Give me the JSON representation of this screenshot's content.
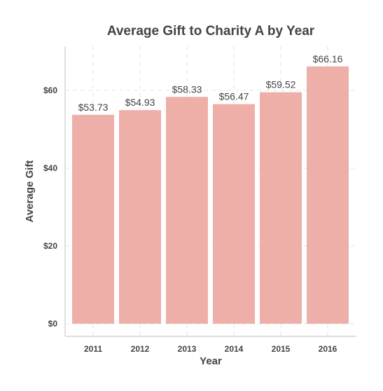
{
  "chart_data": {
    "type": "bar",
    "title": "Average Gift to Charity A by Year",
    "xlabel": "Year",
    "ylabel": "Average Gift",
    "categories": [
      "2011",
      "2012",
      "2013",
      "2014",
      "2015",
      "2016"
    ],
    "values": [
      53.73,
      54.93,
      58.33,
      56.47,
      59.52,
      66.16
    ],
    "data_labels": [
      "$53.73",
      "$54.93",
      "$58.33",
      "$56.47",
      "$59.52",
      "$66.16"
    ],
    "ylim": [
      0,
      72
    ],
    "yticks": [
      0,
      20,
      40,
      60
    ],
    "ytick_labels": [
      "$0",
      "$20",
      "$40",
      "$60"
    ],
    "grid": true,
    "bar_color": "#eeafa9",
    "text_color": "#444444"
  }
}
